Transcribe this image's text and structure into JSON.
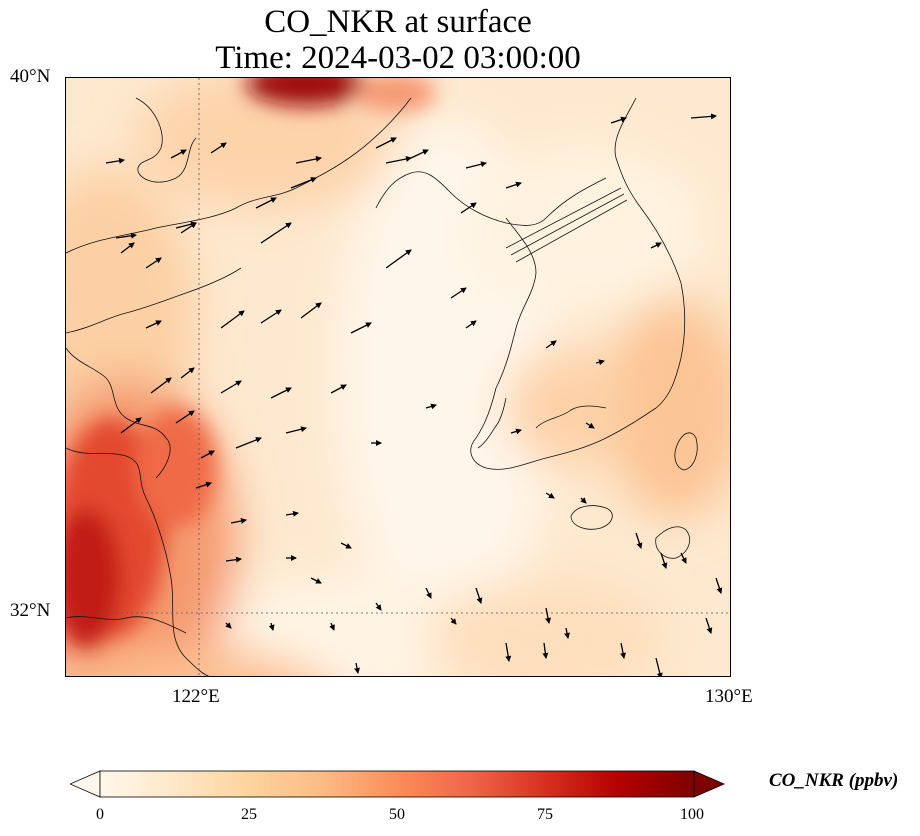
{
  "title": {
    "line1": "CO_NKR at surface",
    "line2": "Time: 2024-03-02 03:00:00"
  },
  "axes": {
    "lat_ticks": [
      "40°N",
      "32°N"
    ],
    "lon_ticks": [
      "122°E",
      "130°E"
    ],
    "extent": {
      "lon_min": 120,
      "lon_max": 130,
      "lat_min": 31,
      "lat_max": 40
    },
    "gridlines": "dotted at 122°E and 32°N"
  },
  "colorbar": {
    "title": "CO_NKR (ppbv)",
    "ticks": [
      "0",
      "25",
      "50",
      "75",
      "100"
    ],
    "min": 0,
    "max": 100,
    "colormap": "OrRd",
    "colors": [
      "#fff7ec",
      "#fee8c8",
      "#fdd49e",
      "#fdbb84",
      "#fc8d59",
      "#ef6548",
      "#d7301f",
      "#b30000",
      "#7f0000"
    ]
  },
  "map": {
    "field": "CO_NKR",
    "level": "surface",
    "vectors": "wind arrows"
  }
}
